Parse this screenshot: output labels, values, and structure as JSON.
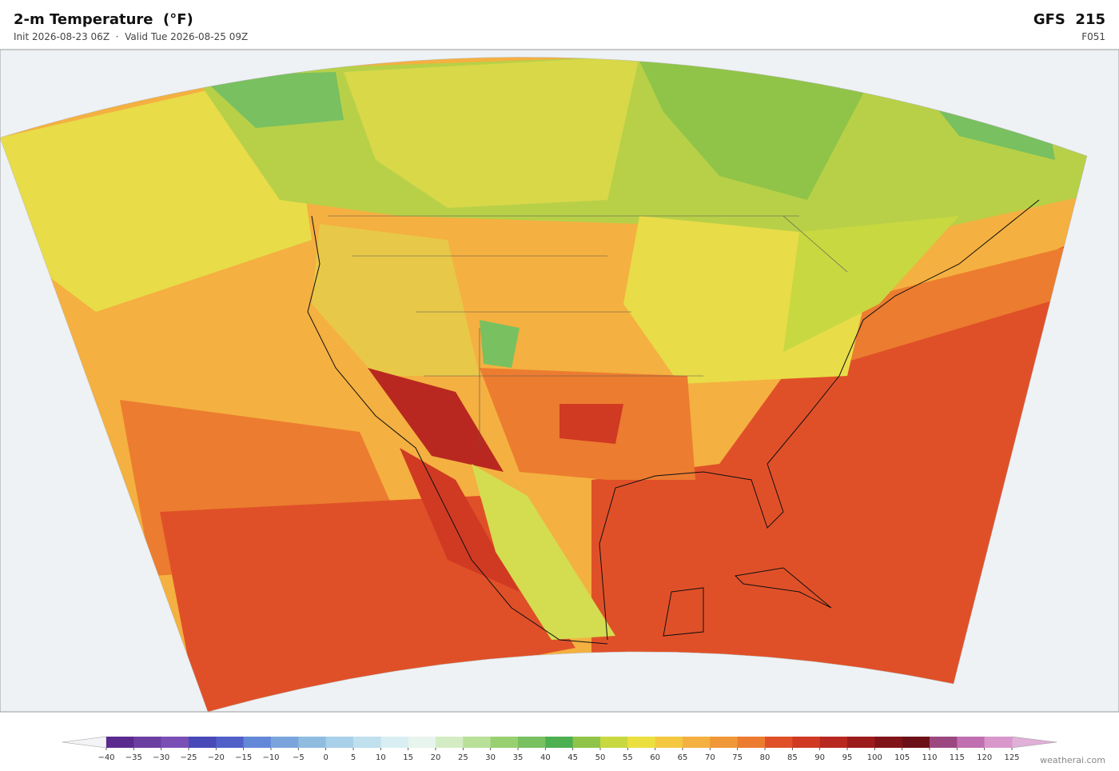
{
  "header": {
    "title": "2-m Temperature  (°F)",
    "subtitle": "Init 2026-08-23 06Z  ·  Valid Tue 2026-08-25 09Z",
    "model": "GFS  215",
    "frame": "F051"
  },
  "colorbar": {
    "ticks": [
      {
        "value": -40,
        "label": "−40"
      },
      {
        "value": -35,
        "label": "−35"
      },
      {
        "value": -30,
        "label": "−30"
      },
      {
        "value": -25,
        "label": "−25"
      },
      {
        "value": -20,
        "label": "−20"
      },
      {
        "value": -15,
        "label": "−15"
      },
      {
        "value": -10,
        "label": "−10"
      },
      {
        "value": -5,
        "label": "−5"
      },
      0,
      5,
      10,
      15,
      20,
      25,
      30,
      35,
      40,
      45,
      50,
      55,
      60,
      65,
      70,
      75,
      80,
      85,
      90,
      95,
      100,
      105,
      110,
      115,
      120,
      125
    ],
    "colors": [
      "#5b2a8e",
      "#6b3fa0",
      "#7a4fb5",
      "#4848b8",
      "#5060c8",
      "#6488d8",
      "#7ca4dc",
      "#90bce0",
      "#a8d0e8",
      "#c0e0ee",
      "#d8eef2",
      "#e8f4ee",
      "#d4ecc4",
      "#b8e098",
      "#98d070",
      "#78c060",
      "#4caf50",
      "#90c448",
      "#c8d840",
      "#ece040",
      "#f4c840",
      "#f4b040",
      "#f09838",
      "#ec7c30",
      "#e05028",
      "#d03a22",
      "#b82820",
      "#9c1c1c",
      "#801418",
      "#6c1018",
      "#9c4880",
      "#c070b0",
      "#d898cc"
    ],
    "under_color": "#f4f4f6",
    "over_color": "#e0b0d8"
  },
  "footer": {
    "credit": "weatherai.com"
  }
}
